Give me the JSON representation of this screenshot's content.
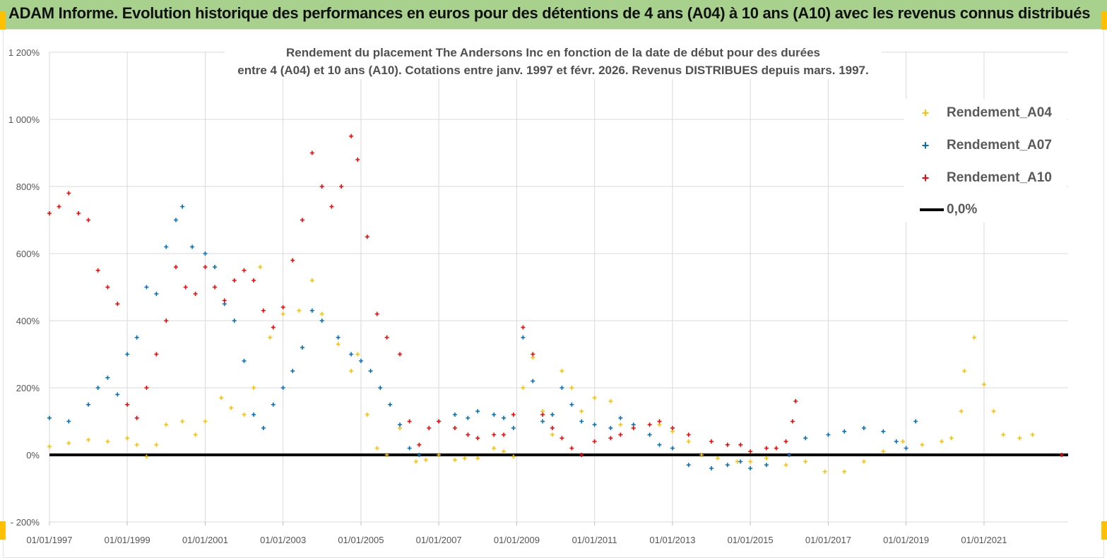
{
  "banner": {
    "title": "ADAM Informe. Evolution historique des performances en euros pour des détentions de 4 ans (A04) à 10 ans (A10) avec les revenus connus distribués"
  },
  "colors": {
    "banner_bg": "#a9d18e",
    "A04": "#ffc000",
    "A07": "#0070c0",
    "A10": "#ff0000",
    "zero_line": "#000000"
  },
  "chart_data": {
    "type": "scatter",
    "title_line1": "Rendement du placement The Andersons Inc en fonction de la date de début pour des durées",
    "title_line2": "entre 4 (A04) et 10 ans (A10).  Cotations entre janv. 1997 et févr. 2026. Revenus  DISTRIBUES depuis mars. 1997.",
    "xlabel": "",
    "ylabel": "",
    "xlim": [
      "1997-01-01",
      "2023-03-01"
    ],
    "ylim": [
      -200,
      1200
    ],
    "y_ticks": [
      "- 200%",
      "0%",
      "200%",
      "400%",
      "600%",
      "800%",
      "1 000%",
      "1 200%"
    ],
    "x_ticks": [
      "01/01/1997",
      "01/01/1999",
      "01/01/2001",
      "01/01/2003",
      "01/01/2005",
      "01/01/2007",
      "01/01/2009",
      "01/01/2011",
      "01/01/2013",
      "01/01/2015",
      "01/01/2017",
      "01/01/2019",
      "01/01/2021"
    ],
    "grid": true,
    "legend_position": "top-right",
    "series": [
      {
        "name": "Rendement_A04",
        "key": "A04",
        "x": [
          "1997-01-01",
          "1997-07-01",
          "1998-01-01",
          "1998-07-01",
          "1999-01-01",
          "1999-04-01",
          "1999-07-01",
          "1999-10-01",
          "2000-01-01",
          "2000-06-01",
          "2000-10-01",
          "2001-01-01",
          "2001-06-01",
          "2001-09-01",
          "2002-01-01",
          "2002-04-01",
          "2002-06-01",
          "2002-09-01",
          "2003-01-01",
          "2003-06-01",
          "2003-10-01",
          "2004-01-01",
          "2004-06-01",
          "2004-10-01",
          "2004-12-01",
          "2005-03-01",
          "2005-06-01",
          "2005-09-01",
          "2006-01-01",
          "2006-06-01",
          "2006-09-01",
          "2007-01-01",
          "2007-06-01",
          "2007-09-01",
          "2008-01-01",
          "2008-06-01",
          "2008-09-01",
          "2008-12-01",
          "2009-03-01",
          "2009-06-01",
          "2009-09-01",
          "2009-12-01",
          "2010-03-01",
          "2010-06-01",
          "2010-09-01",
          "2011-01-01",
          "2011-06-01",
          "2011-09-01",
          "2012-01-01",
          "2012-06-01",
          "2012-09-01",
          "2013-01-01",
          "2013-06-01",
          "2013-10-01",
          "2014-03-01",
          "2014-09-01",
          "2015-01-01",
          "2015-06-01",
          "2015-12-01",
          "2016-06-01",
          "2016-12-01",
          "2017-06-01",
          "2017-12-01",
          "2018-06-01",
          "2018-12-01",
          "2019-06-01",
          "2019-12-01",
          "2020-03-01",
          "2020-06-01",
          "2020-07-01",
          "2020-10-01",
          "2021-01-01",
          "2021-04-01",
          "2021-07-01",
          "2021-12-01",
          "2022-04-01"
        ],
        "values": [
          25,
          35,
          45,
          40,
          50,
          30,
          -5,
          30,
          90,
          100,
          60,
          100,
          170,
          140,
          120,
          200,
          560,
          350,
          420,
          430,
          520,
          420,
          330,
          250,
          300,
          120,
          20,
          0,
          80,
          -20,
          -15,
          0,
          -15,
          -10,
          -10,
          20,
          10,
          -5,
          200,
          290,
          130,
          60,
          250,
          200,
          130,
          170,
          160,
          90,
          80,
          60,
          90,
          70,
          40,
          0,
          -10,
          -20,
          -20,
          -10,
          -30,
          -20,
          -50,
          -50,
          -20,
          10,
          40,
          30,
          40,
          50,
          130,
          250,
          350,
          210,
          130,
          60,
          50,
          60
        ]
      },
      {
        "name": "Rendement_A07",
        "key": "A07",
        "x": [
          "1997-01-01",
          "1997-07-01",
          "1998-01-01",
          "1998-04-01",
          "1998-07-01",
          "1998-10-01",
          "1999-01-01",
          "1999-04-01",
          "1999-07-01",
          "1999-10-01",
          "2000-01-01",
          "2000-04-01",
          "2000-06-01",
          "2000-09-01",
          "2001-01-01",
          "2001-04-01",
          "2001-07-01",
          "2001-10-01",
          "2002-01-01",
          "2002-04-01",
          "2002-07-01",
          "2002-10-01",
          "2003-01-01",
          "2003-04-01",
          "2003-07-01",
          "2003-10-01",
          "2004-01-01",
          "2004-06-01",
          "2004-10-01",
          "2005-01-01",
          "2005-04-01",
          "2005-07-01",
          "2005-10-01",
          "2006-01-01",
          "2006-04-01",
          "2006-07-01",
          "2007-01-01",
          "2007-06-01",
          "2007-10-01",
          "2008-01-01",
          "2008-06-01",
          "2008-09-01",
          "2008-12-01",
          "2009-03-01",
          "2009-06-01",
          "2009-09-01",
          "2009-12-01",
          "2010-03-01",
          "2010-06-01",
          "2010-09-01",
          "2011-01-01",
          "2011-06-01",
          "2011-09-01",
          "2012-01-01",
          "2012-06-01",
          "2012-09-01",
          "2013-01-01",
          "2013-06-01",
          "2014-01-01",
          "2014-06-01",
          "2014-10-01",
          "2015-01-01",
          "2015-06-01",
          "2016-01-01",
          "2016-06-01",
          "2017-01-01",
          "2017-06-01",
          "2017-12-01",
          "2018-06-01",
          "2018-10-01",
          "2019-01-01",
          "2019-04-01"
        ],
        "values": [
          110,
          100,
          150,
          200,
          230,
          180,
          300,
          350,
          500,
          480,
          620,
          700,
          740,
          620,
          600,
          560,
          450,
          400,
          280,
          120,
          80,
          150,
          200,
          250,
          320,
          430,
          400,
          350,
          300,
          280,
          250,
          200,
          150,
          90,
          20,
          0,
          100,
          120,
          110,
          130,
          120,
          110,
          80,
          350,
          220,
          100,
          120,
          200,
          150,
          100,
          90,
          80,
          110,
          90,
          60,
          30,
          20,
          -30,
          -40,
          -30,
          -20,
          -40,
          -30,
          0,
          50,
          60,
          70,
          80,
          70,
          40,
          20,
          100
        ]
      },
      {
        "name": "Rendement_A10",
        "key": "A10",
        "x": [
          "1997-01-01",
          "1997-04-01",
          "1997-07-01",
          "1997-10-01",
          "1998-01-01",
          "1998-04-01",
          "1998-07-01",
          "1998-10-01",
          "1999-01-01",
          "1999-04-01",
          "1999-07-01",
          "1999-10-01",
          "2000-01-01",
          "2000-04-01",
          "2000-07-01",
          "2000-10-01",
          "2001-01-01",
          "2001-04-01",
          "2001-07-01",
          "2001-10-01",
          "2002-01-01",
          "2002-04-01",
          "2002-07-01",
          "2002-10-01",
          "2003-01-01",
          "2003-04-01",
          "2003-07-01",
          "2003-10-01",
          "2004-01-01",
          "2004-04-01",
          "2004-07-01",
          "2004-10-01",
          "2004-12-01",
          "2005-03-01",
          "2005-06-01",
          "2005-09-01",
          "2006-01-01",
          "2006-04-01",
          "2006-07-01",
          "2006-10-01",
          "2007-01-01",
          "2007-06-01",
          "2007-10-01",
          "2008-01-01",
          "2008-06-01",
          "2008-09-01",
          "2008-12-01",
          "2009-03-01",
          "2009-06-01",
          "2009-09-01",
          "2009-12-01",
          "2010-03-01",
          "2010-06-01",
          "2010-09-01",
          "2011-01-01",
          "2011-06-01",
          "2011-09-01",
          "2012-01-01",
          "2012-06-01",
          "2012-09-01",
          "2013-01-01",
          "2013-06-01",
          "2014-01-01",
          "2014-06-01",
          "2014-10-01",
          "2015-01-01",
          "2015-06-01",
          "2015-09-01",
          "2015-12-01",
          "2016-02-01",
          "2016-03-01",
          "2022-12-31"
        ],
        "values": [
          720,
          740,
          780,
          720,
          700,
          550,
          500,
          450,
          150,
          110,
          200,
          300,
          400,
          560,
          500,
          480,
          560,
          500,
          460,
          520,
          550,
          520,
          430,
          380,
          440,
          580,
          700,
          900,
          800,
          740,
          800,
          950,
          880,
          650,
          420,
          350,
          300,
          100,
          30,
          80,
          100,
          80,
          60,
          50,
          60,
          60,
          120,
          380,
          300,
          120,
          80,
          50,
          20,
          0,
          40,
          50,
          60,
          80,
          90,
          100,
          80,
          60,
          40,
          30,
          30,
          10,
          20,
          20,
          40,
          100,
          160,
          0
        ]
      }
    ],
    "zero_line": {
      "name": "0,0%",
      "value": 0
    }
  },
  "legend": {
    "items": [
      {
        "label": "Rendement_A04",
        "mark": "+",
        "key": "A04"
      },
      {
        "label": "Rendement_A07",
        "mark": "+",
        "key": "A07"
      },
      {
        "label": "Rendement_A10",
        "mark": "+",
        "key": "A10"
      },
      {
        "label": "0,0%",
        "mark": "line",
        "key": "zero"
      }
    ]
  }
}
